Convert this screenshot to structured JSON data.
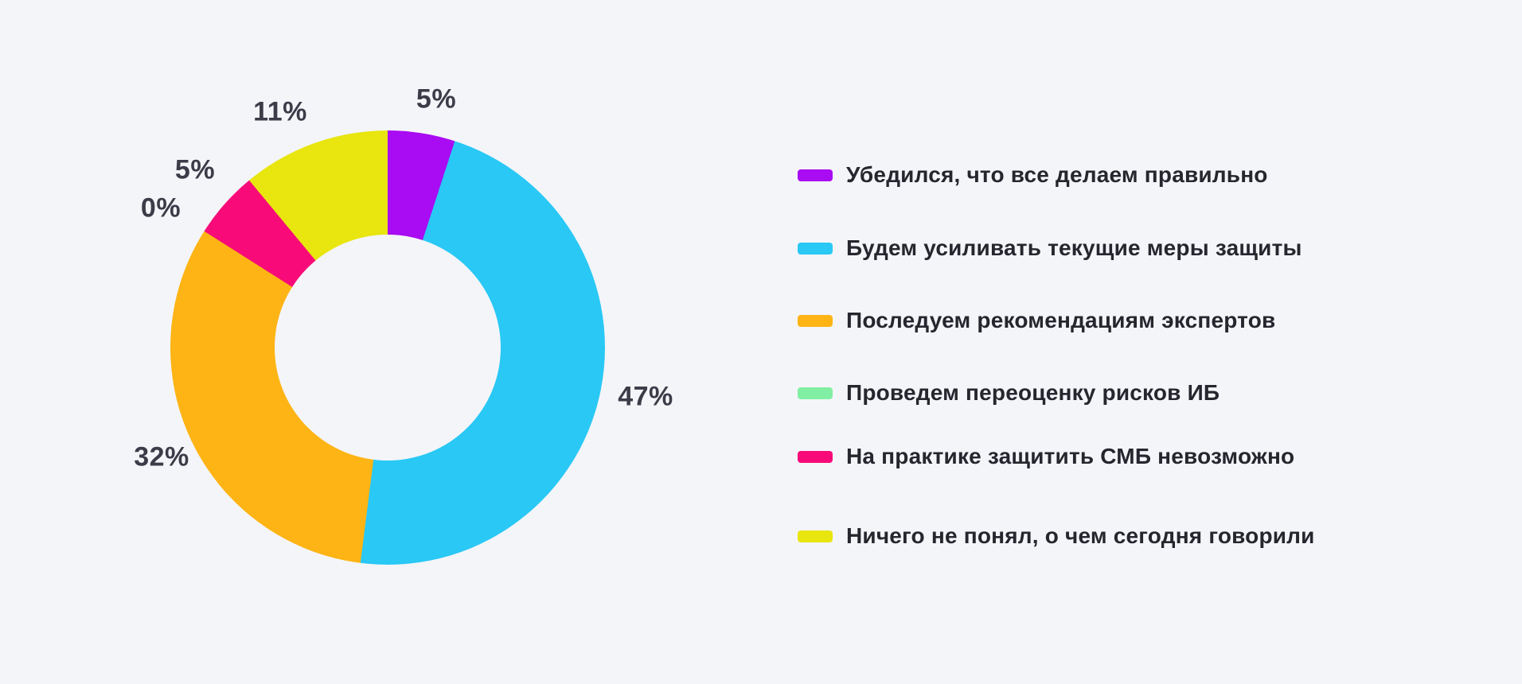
{
  "chart_data": {
    "type": "pie",
    "subtype": "donut",
    "title": "",
    "legend_position": "right",
    "background_color": "#f4f5f9",
    "label_color": "#3c3c49",
    "start_angle_deg": 0,
    "direction": "clockwise",
    "slices": [
      {
        "label": "Убедился, что все делаем правильно",
        "value": 5,
        "pct_label": "5%",
        "color": "#a90bf2"
      },
      {
        "label": "Будем усиливать текущие меры защиты",
        "value": 47,
        "pct_label": "47%",
        "color": "#29c8f5"
      },
      {
        "label": "Последуем рекомендациям экспертов",
        "value": 32,
        "pct_label": "32%",
        "color": "#fdb414"
      },
      {
        "label": "Проведем переоценку рисков ИБ",
        "value": 0,
        "pct_label": "0%",
        "color": "#81efa3"
      },
      {
        "label": "На практике защитить СМБ невозможно",
        "value": 5,
        "pct_label": "5%",
        "color": "#f80b78"
      },
      {
        "label": "Ничего не понял, о чем сегодня говорили",
        "value": 11,
        "pct_label": "11%",
        "color": "#e8e50f"
      }
    ]
  }
}
